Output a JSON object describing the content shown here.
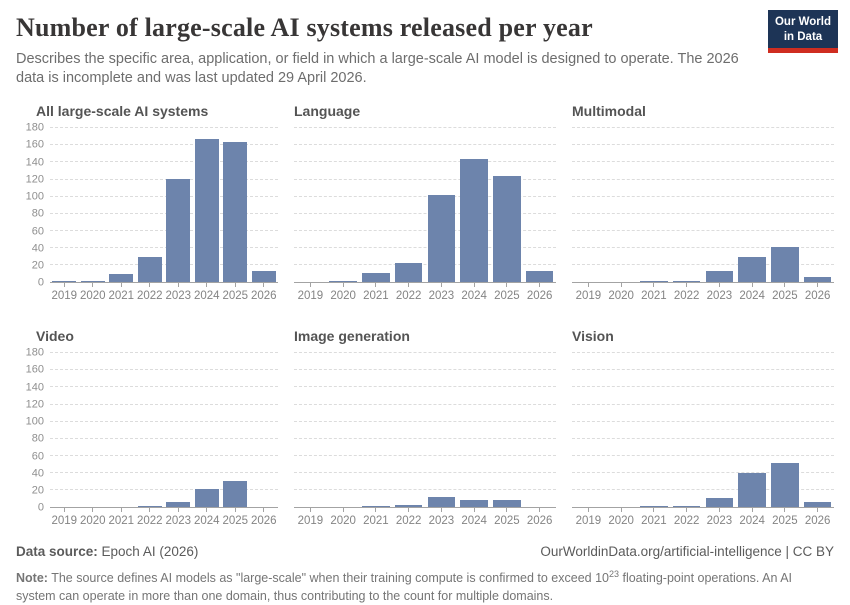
{
  "header": {
    "title": "Number of large-scale AI systems released per year",
    "subtitle": "Describes the specific area, application, or field in which a large-scale AI model is designed to operate. The 2026 data is incomplete and was last updated 29 April 2026.",
    "logo_line1": "Our World",
    "logo_line2": "in Data"
  },
  "chart_data": {
    "type": "bar",
    "categories": [
      "2019",
      "2020",
      "2021",
      "2022",
      "2023",
      "2024",
      "2025",
      "2026"
    ],
    "ylim": [
      0,
      180
    ],
    "yticks": [
      0,
      20,
      40,
      60,
      80,
      100,
      120,
      140,
      160,
      180
    ],
    "grid": true,
    "legend_position": "none",
    "bar_color": "#6d84ac",
    "series": [
      {
        "name": "All large-scale AI systems",
        "values": [
          1,
          2,
          10,
          30,
          121,
          168,
          164,
          13
        ]
      },
      {
        "name": "Language",
        "values": [
          0,
          2,
          11,
          23,
          102,
          144,
          124,
          13
        ]
      },
      {
        "name": "Multimodal",
        "values": [
          0,
          0,
          2,
          2,
          13,
          30,
          41,
          6
        ]
      },
      {
        "name": "Video",
        "values": [
          0,
          0,
          0,
          2,
          6,
          21,
          31,
          0
        ]
      },
      {
        "name": "Image generation",
        "values": [
          0,
          0,
          1,
          3,
          12,
          9,
          8,
          0
        ]
      },
      {
        "name": "Vision",
        "values": [
          0,
          0,
          2,
          2,
          11,
          40,
          52,
          6
        ]
      }
    ]
  },
  "footer": {
    "datasource_label": "Data source:",
    "datasource_value": " Epoch AI (2026)",
    "attribution": "OurWorldinData.org/artificial-intelligence | CC BY",
    "note_label": "Note:",
    "note_part1": " The source defines AI models as \"large-scale\" when their training compute is confirmed to exceed 10",
    "note_exponent": "23",
    "note_part2": " floating-point operations. An AI system can operate in more than one domain, thus contributing to the count for multiple domains."
  }
}
